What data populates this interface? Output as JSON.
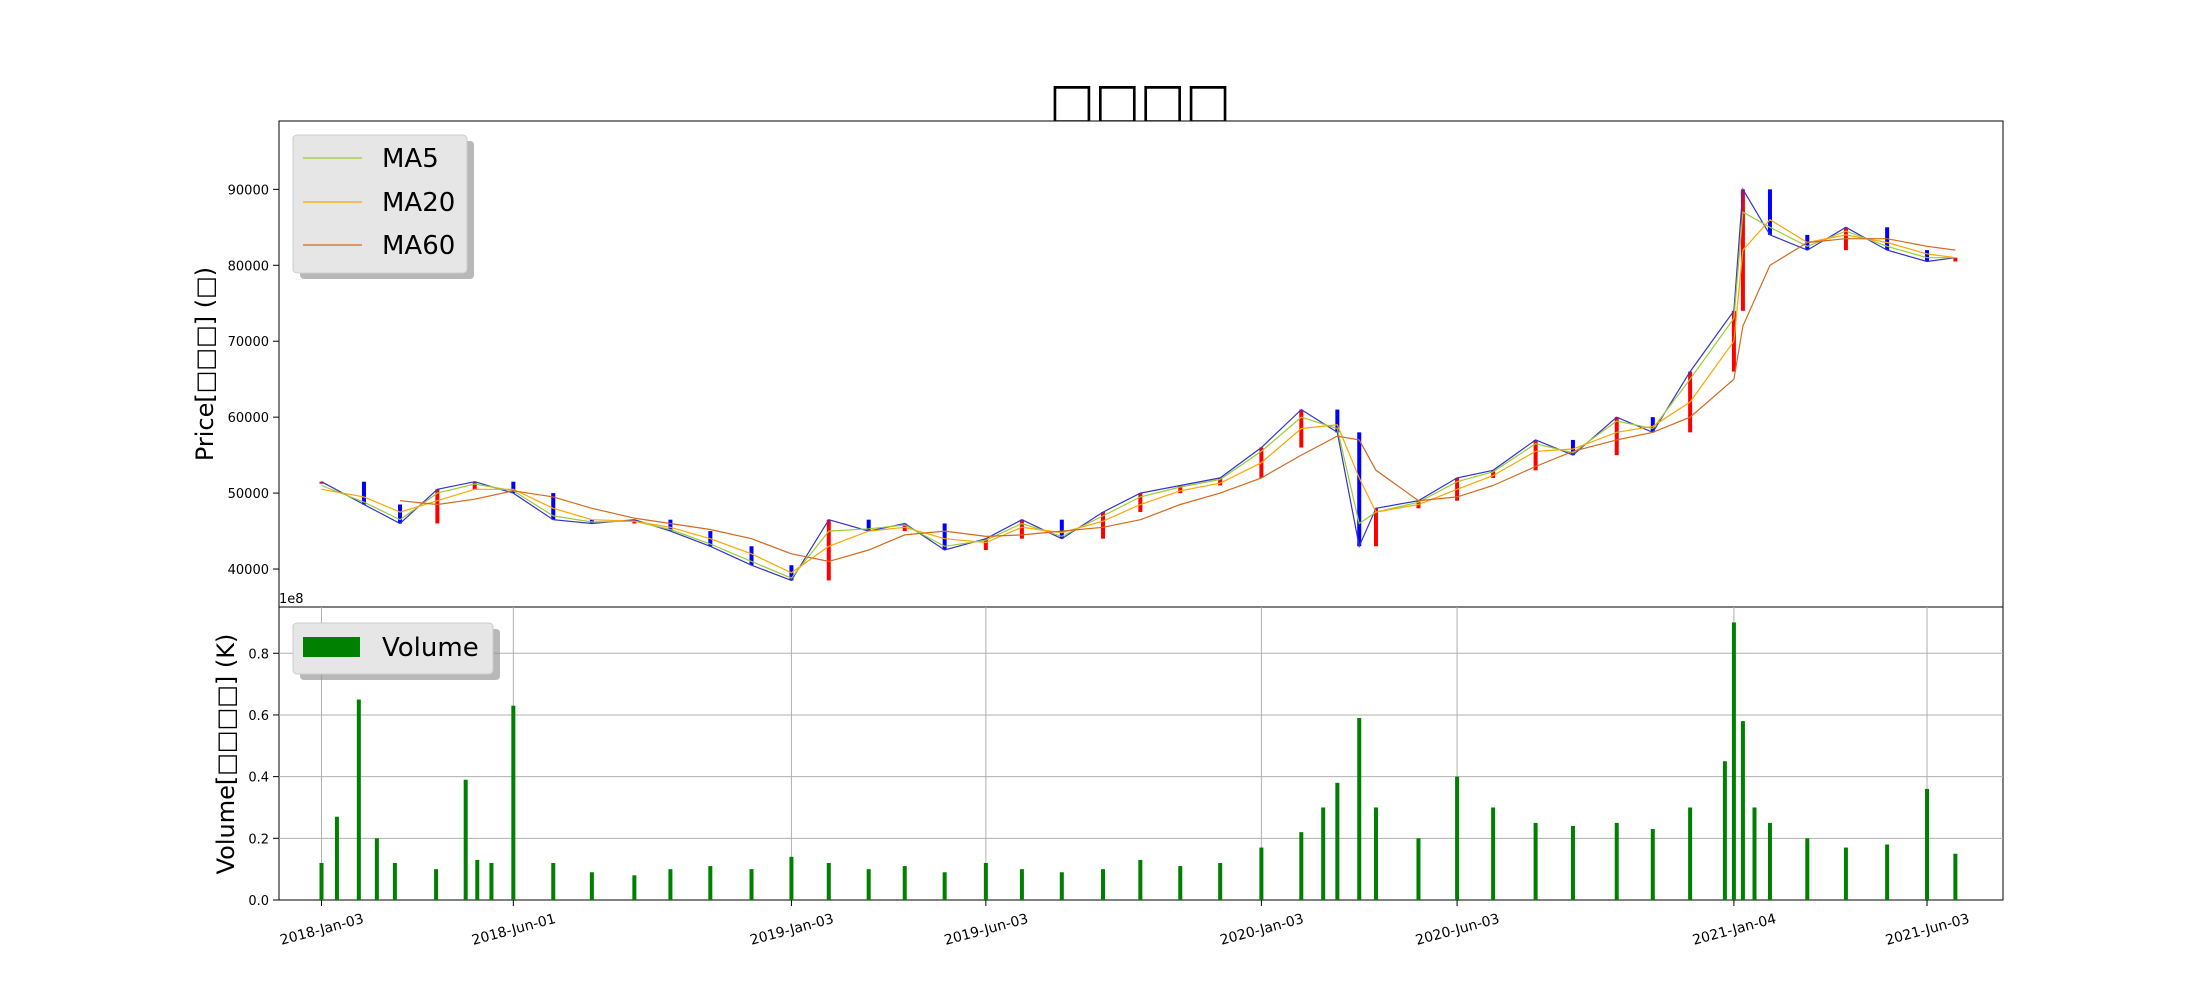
{
  "chart_data": {
    "title": "□□□□",
    "price_panel": {
      "type": "candlestick",
      "ylabel": "Price[□□□] (□)",
      "ylim": [
        35000,
        99000
      ],
      "yticks": [
        "40000",
        "50000",
        "60000",
        "70000",
        "80000",
        "90000"
      ],
      "legend_position": "top-left",
      "legend": [
        {
          "name": "MA5",
          "color": "#9acd32"
        },
        {
          "name": "MA20",
          "color": "#ffa500"
        },
        {
          "name": "MA60",
          "color": "#d2691e"
        }
      ],
      "up_color": "#ff0000",
      "down_color": "#0000ff",
      "price_series": {
        "dates": [
          "2018-01-03",
          "2018-02-05",
          "2018-03-05",
          "2018-04-03",
          "2018-05-02",
          "2018-06-01",
          "2018-07-02",
          "2018-08-01",
          "2018-09-03",
          "2018-10-01",
          "2018-11-01",
          "2018-12-03",
          "2019-01-03",
          "2019-02-01",
          "2019-03-04",
          "2019-04-01",
          "2019-05-02",
          "2019-06-03",
          "2019-07-01",
          "2019-08-01",
          "2019-09-02",
          "2019-10-01",
          "2019-11-01",
          "2019-12-02",
          "2020-01-03",
          "2020-02-03",
          "2020-03-02",
          "2020-03-19",
          "2020-04-01",
          "2020-05-04",
          "2020-06-03",
          "2020-07-01",
          "2020-08-03",
          "2020-09-01",
          "2020-10-05",
          "2020-11-02",
          "2020-12-01",
          "2021-01-04",
          "2021-01-11",
          "2021-02-01",
          "2021-03-02",
          "2021-04-01",
          "2021-05-03",
          "2021-06-03",
          "2021-06-25"
        ],
        "close": [
          51500,
          48500,
          46000,
          50500,
          51500,
          50000,
          46500,
          46000,
          46500,
          45000,
          43000,
          40500,
          38500,
          46500,
          45000,
          46000,
          42500,
          44000,
          46500,
          44000,
          47500,
          50000,
          51000,
          52000,
          56000,
          61000,
          58000,
          43000,
          48000,
          49000,
          52000,
          53000,
          57000,
          55000,
          60000,
          58000,
          66000,
          74000,
          90000,
          84000,
          82000,
          85000,
          82000,
          80500,
          81000
        ],
        "ma5": [
          51000,
          48800,
          46500,
          50000,
          51200,
          50300,
          47000,
          46200,
          46300,
          45200,
          43300,
          41000,
          38800,
          45000,
          45300,
          45800,
          43000,
          43800,
          46000,
          44300,
          47000,
          49500,
          50800,
          51800,
          55500,
          60000,
          58500,
          46000,
          47500,
          48800,
          51500,
          52800,
          56500,
          55300,
          59500,
          58500,
          65000,
          73000,
          87000,
          85000,
          82500,
          84500,
          82500,
          81000,
          81000
        ],
        "ma20": [
          50500,
          49500,
          47500,
          49000,
          50500,
          50500,
          48000,
          46500,
          46300,
          45500,
          44000,
          42000,
          39500,
          43000,
          45000,
          45500,
          44000,
          43500,
          45500,
          44800,
          46300,
          48500,
          50300,
          51300,
          54000,
          58500,
          59000,
          52000,
          47500,
          48500,
          50500,
          52300,
          55500,
          55800,
          58000,
          58800,
          62000,
          70000,
          82000,
          86000,
          83000,
          84000,
          83000,
          81500,
          81000
        ],
        "ma60": [
          null,
          null,
          49000,
          48500,
          49200,
          50300,
          49500,
          48000,
          46700,
          46000,
          45200,
          44000,
          42000,
          41000,
          42500,
          44500,
          45000,
          44300,
          44500,
          45000,
          45500,
          46500,
          48500,
          50000,
          52000,
          55000,
          57500,
          57000,
          53000,
          49000,
          49500,
          51000,
          53500,
          55500,
          57000,
          58000,
          60000,
          65000,
          72000,
          80000,
          83000,
          83500,
          83500,
          82500,
          82000
        ]
      }
    },
    "volume_panel": {
      "type": "bar",
      "ylabel": "Volume[□□□□] (K)",
      "offset_text": "1e8",
      "ylim": [
        0,
        0.95
      ],
      "yticks": [
        "0.0",
        "0.2",
        "0.4",
        "0.6",
        "0.8"
      ],
      "legend_position": "top-left",
      "legend": [
        {
          "name": "Volume",
          "color": "#008000"
        }
      ],
      "grid": true,
      "volume_series": {
        "dates": [
          "2018-01-03",
          "2018-01-15",
          "2018-02-01",
          "2018-02-15",
          "2018-03-01",
          "2018-04-02",
          "2018-04-25",
          "2018-05-04",
          "2018-05-15",
          "2018-06-01",
          "2018-07-02",
          "2018-08-01",
          "2018-09-03",
          "2018-10-01",
          "2018-11-01",
          "2018-12-03",
          "2019-01-03",
          "2019-02-01",
          "2019-03-04",
          "2019-04-01",
          "2019-05-02",
          "2019-06-03",
          "2019-07-01",
          "2019-08-01",
          "2019-09-02",
          "2019-10-01",
          "2019-11-01",
          "2019-12-02",
          "2020-01-03",
          "2020-02-03",
          "2020-02-20",
          "2020-03-02",
          "2020-03-19",
          "2020-04-01",
          "2020-05-04",
          "2020-06-03",
          "2020-07-01",
          "2020-08-03",
          "2020-09-01",
          "2020-10-05",
          "2020-11-02",
          "2020-12-01",
          "2020-12-28",
          "2021-01-04",
          "2021-01-11",
          "2021-01-20",
          "2021-02-01",
          "2021-03-02",
          "2021-04-01",
          "2021-05-03",
          "2021-06-03",
          "2021-06-25"
        ],
        "volume": [
          0.12,
          0.27,
          0.65,
          0.2,
          0.12,
          0.1,
          0.39,
          0.13,
          0.12,
          0.63,
          0.12,
          0.09,
          0.08,
          0.1,
          0.11,
          0.1,
          0.14,
          0.12,
          0.1,
          0.11,
          0.09,
          0.12,
          0.1,
          0.09,
          0.1,
          0.13,
          0.11,
          0.12,
          0.17,
          0.22,
          0.3,
          0.38,
          0.59,
          0.3,
          0.2,
          0.4,
          0.3,
          0.25,
          0.24,
          0.25,
          0.23,
          0.3,
          0.45,
          0.9,
          0.58,
          0.3,
          0.25,
          0.2,
          0.17,
          0.18,
          0.36,
          0.15
        ]
      }
    },
    "x_ticks": [
      "2018-Jan-03",
      "2018-Jun-01",
      "2019-Jan-03",
      "2019-Jun-03",
      "2020-Jan-03",
      "2020-Jun-03",
      "2021-Jan-04",
      "2021-Jun-03"
    ],
    "x_range": [
      "2017-12-01",
      "2021-08-01"
    ]
  }
}
